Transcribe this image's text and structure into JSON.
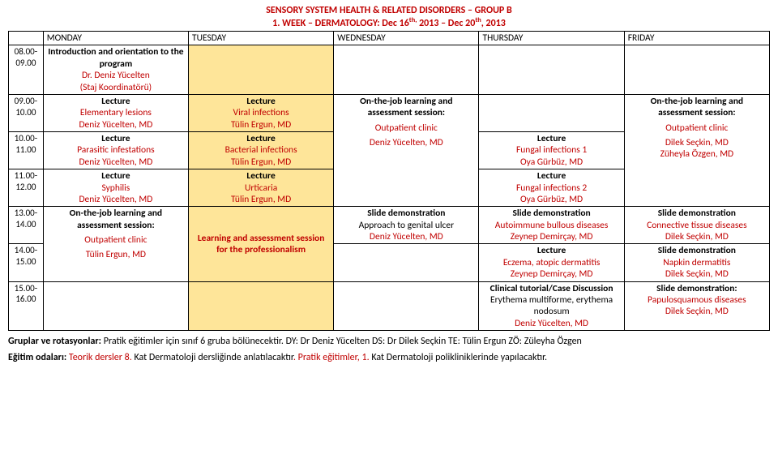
{
  "colors": {
    "highlight_bg": "#fee599",
    "accent_text": "#c00000",
    "border": "#000000",
    "background": "#ffffff"
  },
  "title": "SENSORY SYSTEM HEALTH & RELATED DISORDERS – GROUP B",
  "subtitle_prefix": "1. WEEK – DERMATOLOGY: Dec 16",
  "subtitle_sup1": "th,",
  "subtitle_mid": " 2013 – Dec 20",
  "subtitle_sup2": "th",
  "subtitle_suffix": ", 2013",
  "days": {
    "mon": "MONDAY",
    "tue": "TUESDAY",
    "wed": "WEDNESDAY",
    "thu": "THURSDAY",
    "fri": "FRIDAY"
  },
  "times": {
    "r1": "08.00-09.00",
    "r2": "09.00-10.00",
    "r3": "10.00-11.00",
    "r4": "11.00-12.00",
    "r5": "13.00-14.00",
    "r6": "14.00-15.00",
    "r7": "15.00-16.00"
  },
  "cells": {
    "mon_r1_l1": "Introduction and orientation to the program",
    "mon_r1_l2": "Dr. Deniz Yücelten",
    "mon_r1_l3": "(Staj Koordinatörü)",
    "mon_r2_l1": "Lecture",
    "mon_r2_l2": "Elementary lesions",
    "mon_r2_l3": "Deniz Yücelten, MD",
    "mon_r3_l1": "Lecture",
    "mon_r3_l2": "Parasitic infestations",
    "mon_r3_l3": "Deniz Yücelten, MD",
    "mon_r4_l1": "Lecture",
    "mon_r4_l2": "Syphilis",
    "mon_r4_l3": "Deniz Yücelten, MD",
    "mon_r56_l1": "On-the-job learning and assessment session:",
    "mon_r56_l2": "Outpatient clinic",
    "mon_r56_l3": "Tülin Ergun, MD",
    "tue_r2_l1": "Lecture",
    "tue_r2_l2": "Viral infections",
    "tue_r2_l3": "Tülin Ergun, MD",
    "tue_r3_l1": "Lecture",
    "tue_r3_l2": "Bacterial infections",
    "tue_r3_l3": "Tülin Ergun, MD",
    "tue_r4_l1": "Lecture",
    "tue_r4_l2": "Urticaria",
    "tue_r4_l3": "Tülin Ergun, MD",
    "tue_r56_l1": "Learning and assessment session for the professionalism",
    "wed_r2_l1": "On-the-job learning and assessment session:",
    "wed_r34_l1": "Outpatient clinic",
    "wed_r34_l2": "Deniz Yücelten, MD",
    "wed_r5_l1": "Slide demonstration",
    "wed_r5_l2": "Approach to genital ulcer",
    "wed_r5_l3": "Deniz Yücelten, MD",
    "thu_r3_l1": "Lecture",
    "thu_r3_l2": "Fungal infections 1",
    "thu_r3_l3": "Oya Gürbüz, MD",
    "thu_r4_l1": "Lecture",
    "thu_r4_l2": "Fungal infections 2",
    "thu_r4_l3": "Oya Gürbüz, MD",
    "thu_r5_l1": "Slide demonstration",
    "thu_r5_l2": "Autoimmune bullous diseases",
    "thu_r5_l3": "Zeynep Demirçay, MD",
    "thu_r6_l1": "Lecture",
    "thu_r6_l2": "Eczema, atopic dermatitis",
    "thu_r6_l3": "Zeynep Demirçay, MD",
    "thu_r7_l1": "Clinical tutorial/Case Discussion",
    "thu_r7_l2": "Erythema multiforme, erythema nodosum",
    "thu_r7_l3": "Deniz Yücelten, MD",
    "fri_r2_l1": "On-the-job learning and assessment session:",
    "fri_r34_l1": "Outpatient clinic",
    "fri_r34_l2": "Dilek Seçkin, MD",
    "fri_r34_l3": "Züheyla Özgen, MD",
    "fri_r5_l1": "Slide demonstration",
    "fri_r5_l2": "Connective tissue diseases",
    "fri_r5_l3": "Dilek Seçkin, MD",
    "fri_r6_l1": "Slide demonstration",
    "fri_r6_l2": "Napkin dermatitis",
    "fri_r6_l3": "Dilek Seçkin, MD",
    "fri_r7_l1": "Slide demonstration:",
    "fri_r7_l2": "Papulosquamous diseases",
    "fri_r7_l3": "Dilek Seçkin, MD"
  },
  "footnotes": {
    "f1_a": "Gruplar ve rotasyonlar:",
    "f1_b": " Pratik eğitimler için sınıf 6 gruba bölünecektir. DY: Dr Deniz Yücelten DS: Dr Dilek Seçkin TE: Tülin Ergun ZÖ: Züleyha Özgen",
    "f2_a": "Eğitim odaları:",
    "f2_b": " Teorik dersler 8. ",
    "f2_c": "Kat Dermatoloji dersliğinde anlatılacaktır",
    "f2_d": ". Pratik eğitimler, 1. ",
    "f2_e": "Kat Dermatoloji polikliniklerinde yapılacaktır."
  }
}
